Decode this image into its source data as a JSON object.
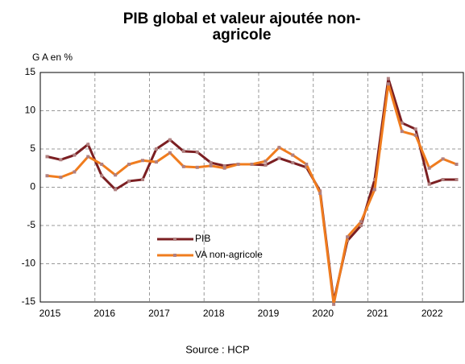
{
  "chart_data": {
    "type": "line",
    "title_lines": [
      "PIB global et valeur ajoutée non-",
      "agricole"
    ],
    "y_label": "G A en %",
    "source": "Source : HCP",
    "x": [
      2015.125,
      2015.375,
      2015.625,
      2015.875,
      2016.125,
      2016.375,
      2016.625,
      2016.875,
      2017.125,
      2017.375,
      2017.625,
      2017.875,
      2018.125,
      2018.375,
      2018.625,
      2018.875,
      2019.125,
      2019.375,
      2019.625,
      2019.875,
      2020.125,
      2020.375,
      2020.625,
      2020.875,
      2021.125,
      2021.375,
      2021.625,
      2021.875,
      2022.125,
      2022.375,
      2022.625
    ],
    "series": [
      {
        "name": "PIB",
        "color": "#7b1f22",
        "values": [
          4.0,
          3.6,
          4.2,
          5.6,
          1.5,
          -0.3,
          0.8,
          1.0,
          5.0,
          6.2,
          4.7,
          4.6,
          3.2,
          2.8,
          3.0,
          3.0,
          2.9,
          3.8,
          3.2,
          2.6,
          -0.5,
          -14.9,
          -7.0,
          -5.0,
          1.0,
          14.2,
          8.4,
          7.6,
          0.4,
          1.0,
          1.0
        ]
      },
      {
        "name": "VA non-agricole",
        "color": "#f07c1e",
        "values": [
          1.5,
          1.3,
          2.0,
          4.0,
          3.0,
          1.6,
          3.0,
          3.5,
          3.3,
          4.5,
          2.7,
          2.6,
          2.8,
          2.5,
          3.0,
          3.0,
          3.4,
          5.2,
          4.2,
          3.0,
          -0.8,
          -15.3,
          -6.5,
          -4.5,
          -0.3,
          13.5,
          7.3,
          6.8,
          2.5,
          3.7,
          3.0
        ]
      }
    ],
    "xlim": [
      2015,
      2022.75
    ],
    "xticks": [
      2015,
      2016,
      2017,
      2018,
      2019,
      2020,
      2021,
      2022
    ],
    "ylim": [
      -15,
      15
    ],
    "yticks": [
      -15,
      -10,
      -5,
      0,
      5,
      10,
      15
    ],
    "grid": true
  }
}
